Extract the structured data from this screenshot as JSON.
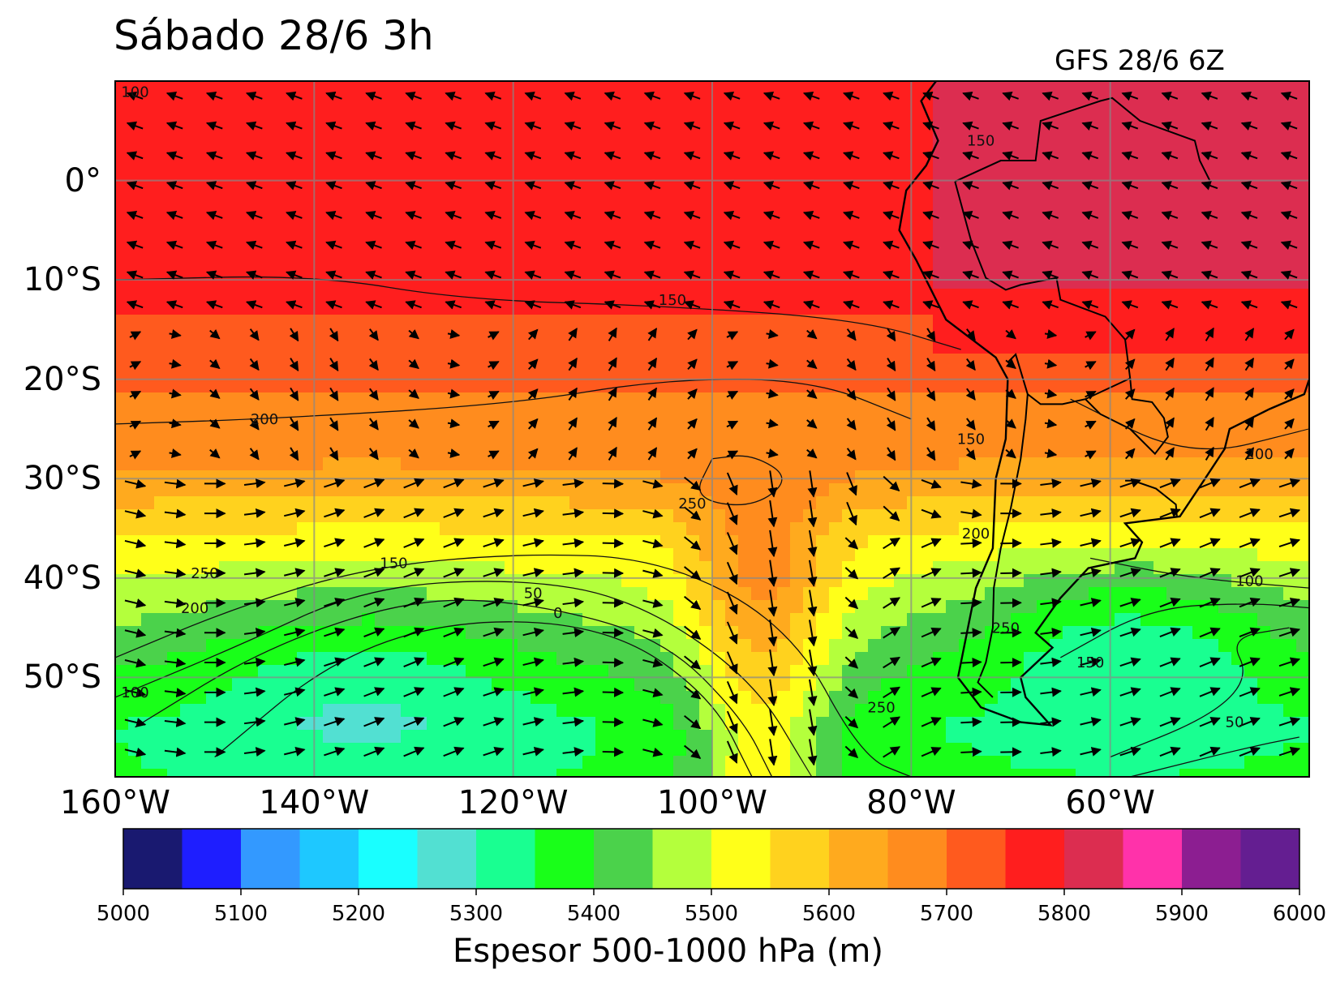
{
  "map": {
    "title": "Sábado 28/6 3h",
    "subtitle": "GFS 28/6 6Z",
    "latitude_labels": [
      "0°",
      "10°S",
      "20°S",
      "30°S",
      "40°S",
      "50°S"
    ],
    "latitude_values": [
      0,
      -10,
      -20,
      -30,
      -40,
      -50
    ],
    "longitude_labels": [
      "160°W",
      "140°W",
      "120°W",
      "100°W",
      "80°W",
      "60°W"
    ],
    "longitude_values": [
      -160,
      -140,
      -120,
      -100,
      -80,
      -60
    ],
    "extent": {
      "lon": [
        -160,
        -40
      ],
      "lat": [
        -60,
        10
      ]
    },
    "contour_labels": [
      {
        "text": "100",
        "lon": -158,
        "lat": 8.4
      },
      {
        "text": "150",
        "lon": -104,
        "lat": -12.5
      },
      {
        "text": "200",
        "lon": -145,
        "lat": -24.5
      },
      {
        "text": "250",
        "lon": -102,
        "lat": -33
      },
      {
        "text": "250",
        "lon": -151,
        "lat": -40
      },
      {
        "text": "150",
        "lon": -132,
        "lat": -39
      },
      {
        "text": "200",
        "lon": -152,
        "lat": -43.5
      },
      {
        "text": "50",
        "lon": -118,
        "lat": -42
      },
      {
        "text": "0",
        "lon": -115.5,
        "lat": -44
      },
      {
        "text": "100",
        "lon": -158,
        "lat": -52
      },
      {
        "text": "250",
        "lon": -83,
        "lat": -53.5
      },
      {
        "text": "250",
        "lon": -70.5,
        "lat": -45.5
      },
      {
        "text": "150",
        "lon": -62,
        "lat": -49
      },
      {
        "text": "100",
        "lon": -46,
        "lat": -40.8
      },
      {
        "text": "50",
        "lon": -47.5,
        "lat": -55
      },
      {
        "text": "200",
        "lon": -45,
        "lat": -28
      },
      {
        "text": "150",
        "lon": -74,
        "lat": -26.5
      },
      {
        "text": "200",
        "lon": -73.5,
        "lat": -36
      },
      {
        "text": "150",
        "lon": -73,
        "lat": 3.5
      }
    ],
    "colorbar": {
      "label": "Espesor 500-1000 hPa (m)",
      "ticks": [
        "5000",
        "5100",
        "5200",
        "5300",
        "5400",
        "5500",
        "5600",
        "5700",
        "5800",
        "5900",
        "6000"
      ],
      "colors": [
        "#191970",
        "#1e1eff",
        "#3399ff",
        "#1ec8ff",
        "#19ffff",
        "#52e0d2",
        "#19ff91",
        "#19ff19",
        "#4bd24b",
        "#b4ff3c",
        "#ffff19",
        "#ffd21e",
        "#ffaa1e",
        "#ff8c1e",
        "#ff5a1e",
        "#ff1e1e",
        "#dc2d50",
        "#ff32aa",
        "#8c1e91",
        "#641e91"
      ]
    }
  }
}
